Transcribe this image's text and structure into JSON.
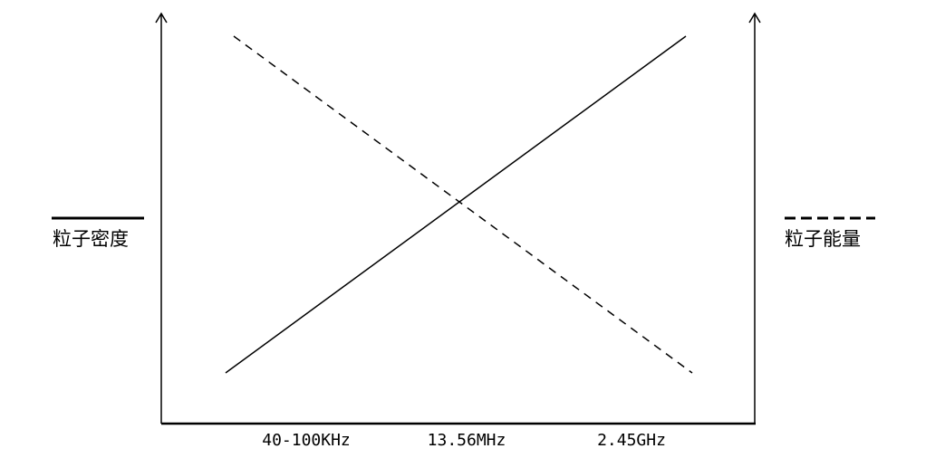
{
  "legend": {
    "left": {
      "label": "粒子密度",
      "style": "solid"
    },
    "right": {
      "label": "粒子能量",
      "style": "dashed"
    }
  },
  "x_ticks": [
    "40-100KHz",
    "13.56MHz",
    "2.45GHz"
  ],
  "series": [
    {
      "name": "粒子密度",
      "style": "solid",
      "trend": "increasing"
    },
    {
      "name": "粒子能量",
      "style": "dashed",
      "trend": "decreasing"
    }
  ],
  "colors": {
    "line": "#000000",
    "background": "#ffffff"
  }
}
